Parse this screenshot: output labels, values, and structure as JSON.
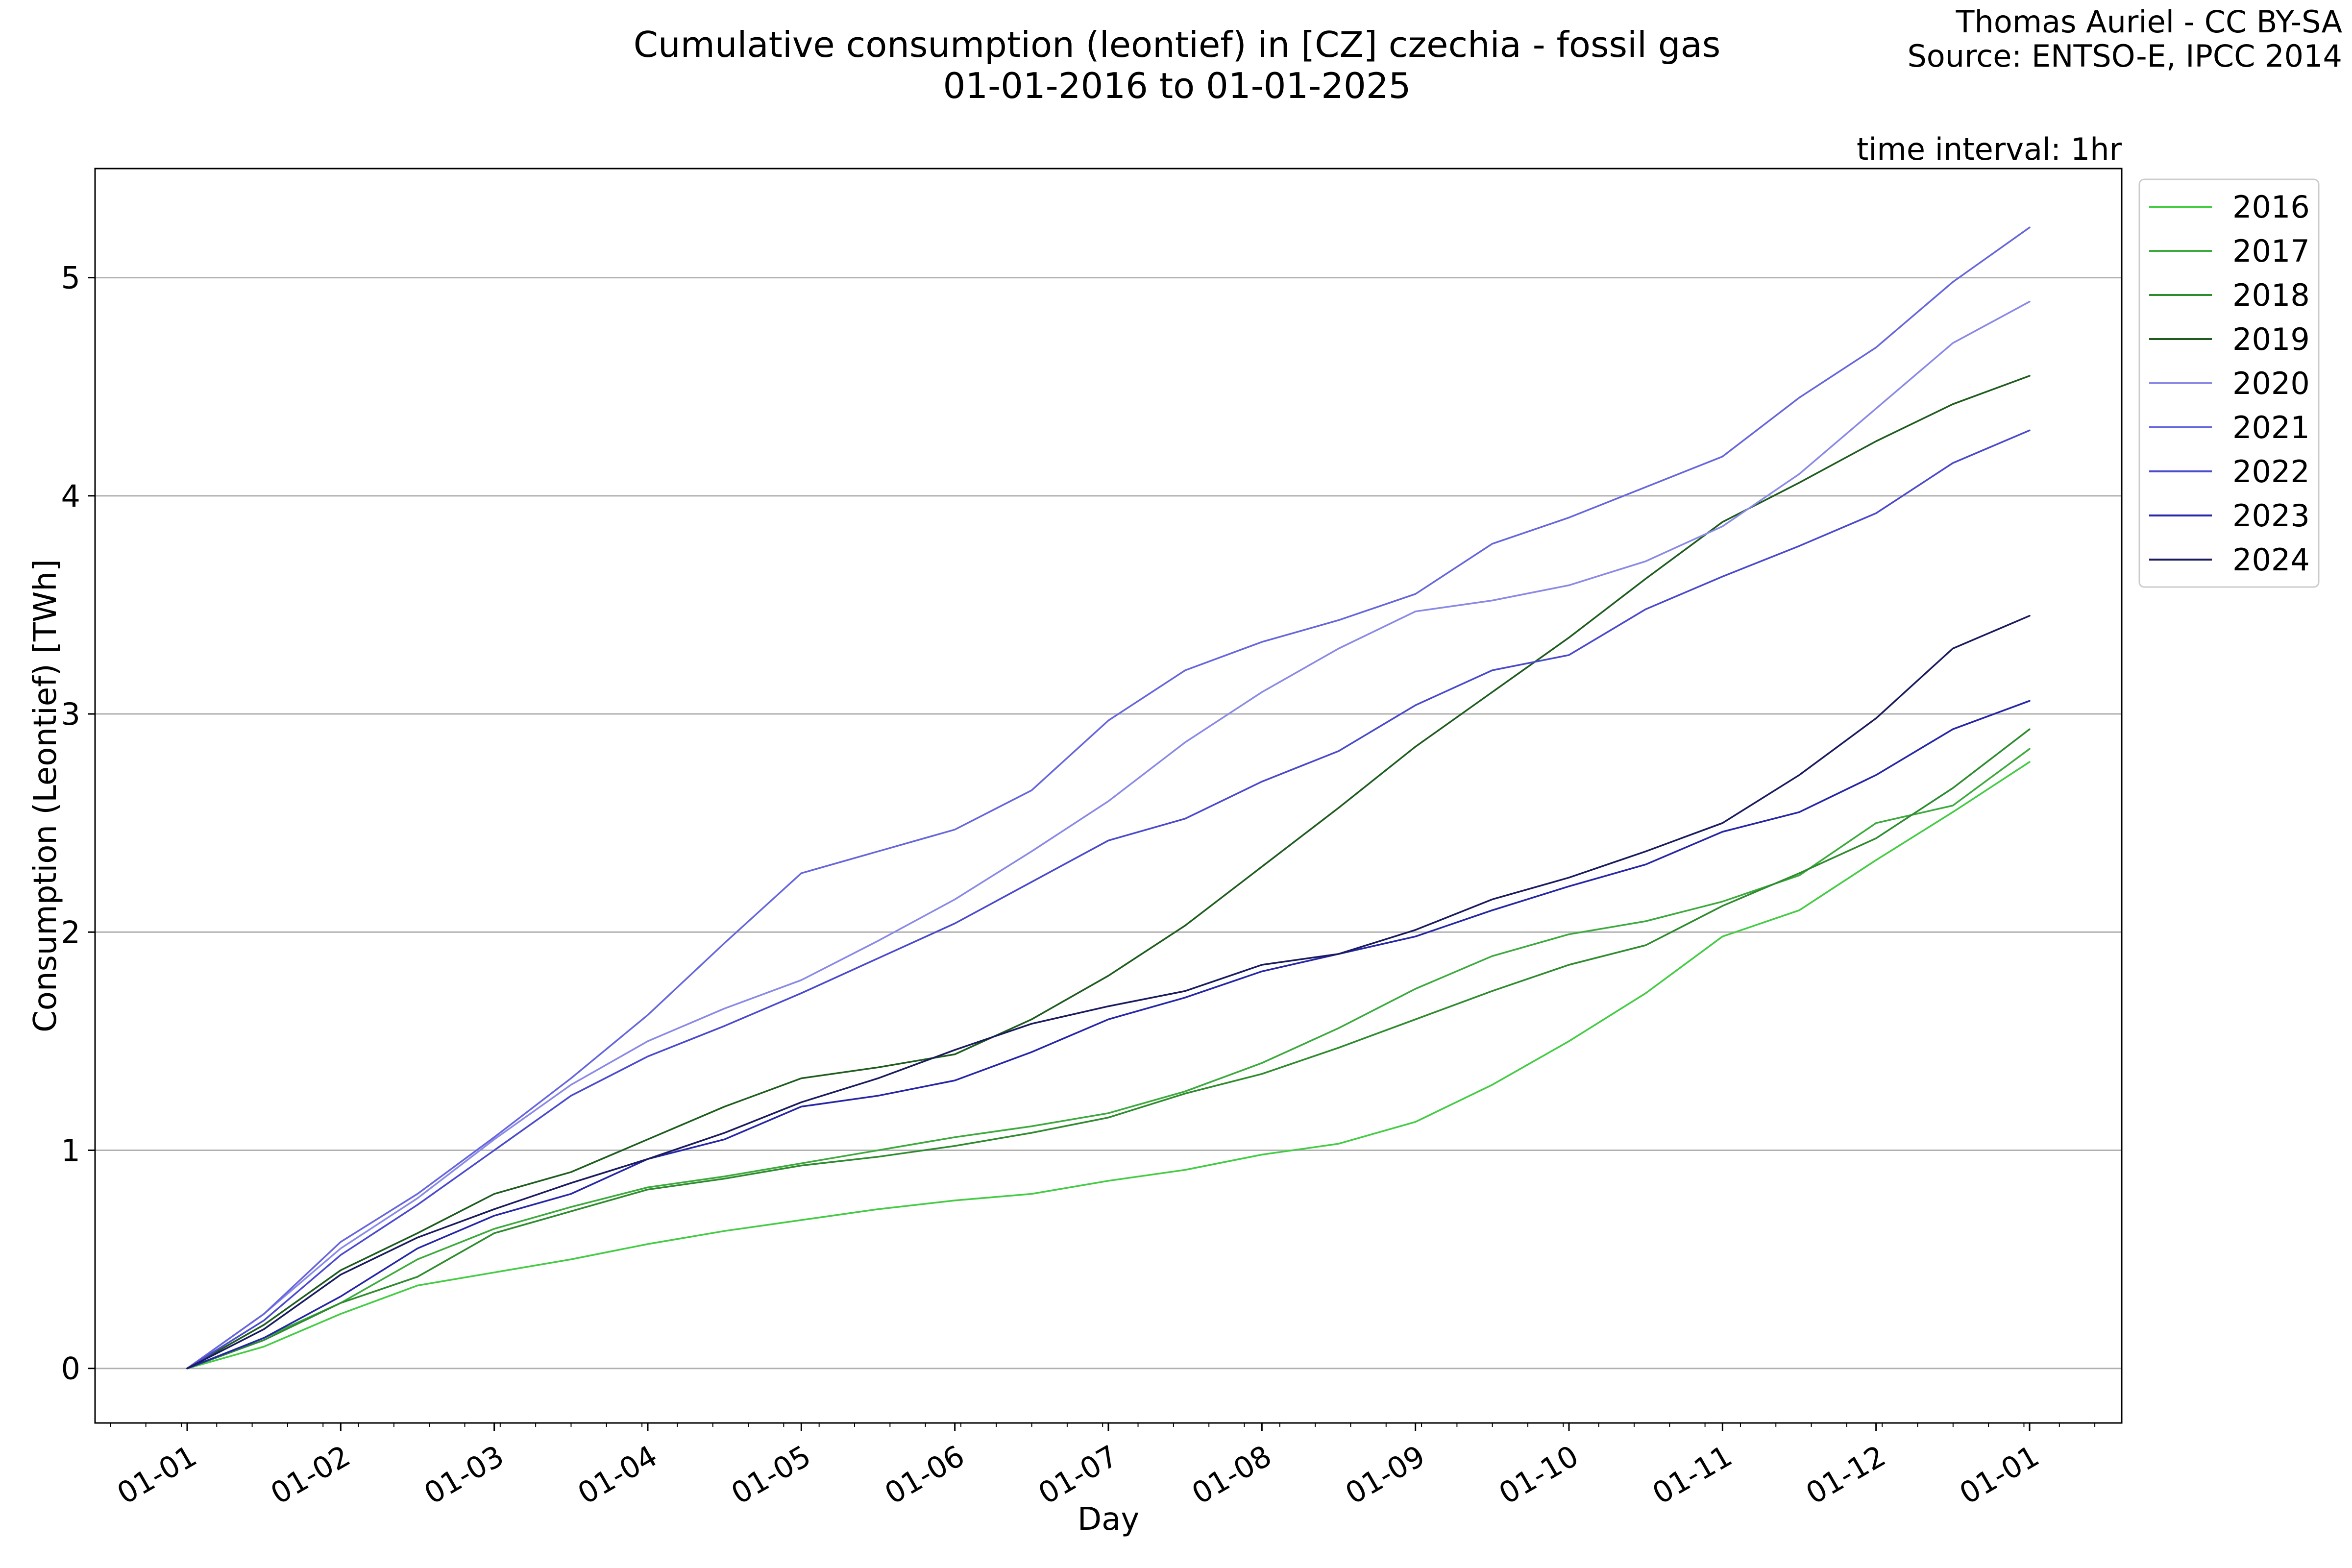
{
  "chart_data": {
    "type": "line",
    "title": "Cumulative consumption (leontief) in [CZ] czechia - fossil gas",
    "subtitle": "01-01-2016 to 01-01-2025",
    "credit": "Thomas Auriel - CC BY-SA",
    "source": "Source: ENTSO-E, IPCC 2014",
    "annotation": "time interval: 1hr",
    "xlabel": "Day",
    "ylabel": "Consumption (Leontief) [TWh]",
    "x_tick_labels": [
      "01-01",
      "01-02",
      "01-03",
      "01-04",
      "01-05",
      "01-06",
      "01-07",
      "01-08",
      "01-09",
      "01-10",
      "01-11",
      "01-12",
      "01-01"
    ],
    "y_ticks": [
      0,
      1,
      2,
      3,
      4,
      5
    ],
    "ylim": [
      -0.25,
      5.5
    ],
    "xlim_months": [
      -0.6,
      12.6
    ],
    "grid": "horizontal",
    "legend_position": "outside-top-right",
    "series": [
      {
        "name": "2016",
        "color": "#44cc44",
        "points": [
          [
            0,
            0
          ],
          [
            0.5,
            0.1
          ],
          [
            1,
            0.25
          ],
          [
            1.5,
            0.38
          ],
          [
            2,
            0.44
          ],
          [
            2.5,
            0.5
          ],
          [
            3,
            0.57
          ],
          [
            3.5,
            0.63
          ],
          [
            4,
            0.68
          ],
          [
            4.5,
            0.73
          ],
          [
            5,
            0.77
          ],
          [
            5.5,
            0.8
          ],
          [
            6,
            0.86
          ],
          [
            6.5,
            0.91
          ],
          [
            7,
            0.98
          ],
          [
            7.5,
            1.03
          ],
          [
            8,
            1.13
          ],
          [
            8.5,
            1.3
          ],
          [
            9,
            1.5
          ],
          [
            9.5,
            1.72
          ],
          [
            10,
            1.98
          ],
          [
            10.5,
            2.1
          ],
          [
            11,
            2.33
          ],
          [
            11.5,
            2.55
          ],
          [
            12,
            2.78
          ]
        ]
      },
      {
        "name": "2017",
        "color": "#3daa3d",
        "points": [
          [
            0,
            0
          ],
          [
            0.5,
            0.14
          ],
          [
            1,
            0.3
          ],
          [
            1.5,
            0.5
          ],
          [
            2,
            0.64
          ],
          [
            2.5,
            0.74
          ],
          [
            3,
            0.83
          ],
          [
            3.5,
            0.88
          ],
          [
            4,
            0.94
          ],
          [
            4.5,
            1.0
          ],
          [
            5,
            1.06
          ],
          [
            5.5,
            1.11
          ],
          [
            6,
            1.17
          ],
          [
            6.5,
            1.27
          ],
          [
            7,
            1.4
          ],
          [
            7.5,
            1.56
          ],
          [
            8,
            1.74
          ],
          [
            8.5,
            1.89
          ],
          [
            9,
            1.99
          ],
          [
            9.5,
            2.05
          ],
          [
            10,
            2.14
          ],
          [
            10.5,
            2.26
          ],
          [
            11,
            2.5
          ],
          [
            11.5,
            2.58
          ],
          [
            12,
            2.84
          ]
        ]
      },
      {
        "name": "2018",
        "color": "#2e8b2e",
        "points": [
          [
            0,
            0
          ],
          [
            0.5,
            0.13
          ],
          [
            1,
            0.3
          ],
          [
            1.5,
            0.42
          ],
          [
            2,
            0.62
          ],
          [
            2.5,
            0.72
          ],
          [
            3,
            0.82
          ],
          [
            3.5,
            0.87
          ],
          [
            4,
            0.93
          ],
          [
            4.5,
            0.97
          ],
          [
            5,
            1.02
          ],
          [
            5.5,
            1.08
          ],
          [
            6,
            1.15
          ],
          [
            6.5,
            1.26
          ],
          [
            7,
            1.35
          ],
          [
            7.5,
            1.47
          ],
          [
            8,
            1.6
          ],
          [
            8.5,
            1.73
          ],
          [
            9,
            1.85
          ],
          [
            9.5,
            1.94
          ],
          [
            10,
            2.12
          ],
          [
            10.5,
            2.27
          ],
          [
            11,
            2.43
          ],
          [
            11.5,
            2.66
          ],
          [
            12,
            2.93
          ]
        ]
      },
      {
        "name": "2019",
        "color": "#1f5c1f",
        "points": [
          [
            0,
            0
          ],
          [
            0.5,
            0.2
          ],
          [
            1,
            0.45
          ],
          [
            1.5,
            0.62
          ],
          [
            2,
            0.8
          ],
          [
            2.5,
            0.9
          ],
          [
            3,
            1.05
          ],
          [
            3.5,
            1.2
          ],
          [
            4,
            1.33
          ],
          [
            4.5,
            1.38
          ],
          [
            5,
            1.44
          ],
          [
            5.5,
            1.6
          ],
          [
            6,
            1.8
          ],
          [
            6.5,
            2.03
          ],
          [
            7,
            2.3
          ],
          [
            7.5,
            2.57
          ],
          [
            8,
            2.85
          ],
          [
            8.5,
            3.1
          ],
          [
            9,
            3.35
          ],
          [
            9.5,
            3.62
          ],
          [
            10,
            3.88
          ],
          [
            10.5,
            4.06
          ],
          [
            11,
            4.25
          ],
          [
            11.5,
            4.42
          ],
          [
            12,
            4.55
          ]
        ]
      },
      {
        "name": "2020",
        "color": "#8a8ae6",
        "points": [
          [
            0,
            0
          ],
          [
            0.5,
            0.25
          ],
          [
            1,
            0.55
          ],
          [
            1.5,
            0.78
          ],
          [
            2,
            1.05
          ],
          [
            2.5,
            1.3
          ],
          [
            3,
            1.5
          ],
          [
            3.5,
            1.65
          ],
          [
            4,
            1.78
          ],
          [
            4.5,
            1.96
          ],
          [
            5,
            2.15
          ],
          [
            5.5,
            2.37
          ],
          [
            6,
            2.6
          ],
          [
            6.5,
            2.87
          ],
          [
            7,
            3.1
          ],
          [
            7.5,
            3.3
          ],
          [
            8,
            3.47
          ],
          [
            8.5,
            3.52
          ],
          [
            9,
            3.59
          ],
          [
            9.5,
            3.7
          ],
          [
            10,
            3.86
          ],
          [
            10.5,
            4.1
          ],
          [
            11,
            4.4
          ],
          [
            11.5,
            4.7
          ],
          [
            12,
            4.89
          ]
        ]
      },
      {
        "name": "2021",
        "color": "#6666dd",
        "points": [
          [
            0,
            0
          ],
          [
            0.5,
            0.25
          ],
          [
            1,
            0.58
          ],
          [
            1.5,
            0.8
          ],
          [
            2,
            1.06
          ],
          [
            2.5,
            1.33
          ],
          [
            3,
            1.62
          ],
          [
            3.5,
            1.95
          ],
          [
            4,
            2.27
          ],
          [
            4.5,
            2.37
          ],
          [
            5,
            2.47
          ],
          [
            5.5,
            2.65
          ],
          [
            6,
            2.97
          ],
          [
            6.5,
            3.2
          ],
          [
            7,
            3.33
          ],
          [
            7.5,
            3.43
          ],
          [
            8,
            3.55
          ],
          [
            8.5,
            3.78
          ],
          [
            9,
            3.9
          ],
          [
            9.5,
            4.04
          ],
          [
            10,
            4.18
          ],
          [
            10.5,
            4.45
          ],
          [
            11,
            4.68
          ],
          [
            11.5,
            4.98
          ],
          [
            12,
            5.23
          ]
        ]
      },
      {
        "name": "2022",
        "color": "#4a4acc",
        "points": [
          [
            0,
            0
          ],
          [
            0.5,
            0.22
          ],
          [
            1,
            0.52
          ],
          [
            1.5,
            0.75
          ],
          [
            2,
            1.0
          ],
          [
            2.5,
            1.25
          ],
          [
            3,
            1.43
          ],
          [
            3.5,
            1.57
          ],
          [
            4,
            1.72
          ],
          [
            4.5,
            1.88
          ],
          [
            5,
            2.04
          ],
          [
            5.5,
            2.23
          ],
          [
            6,
            2.42
          ],
          [
            6.5,
            2.52
          ],
          [
            7,
            2.69
          ],
          [
            7.5,
            2.83
          ],
          [
            8,
            3.04
          ],
          [
            8.5,
            3.2
          ],
          [
            9,
            3.27
          ],
          [
            9.5,
            3.48
          ],
          [
            10,
            3.63
          ],
          [
            10.5,
            3.77
          ],
          [
            11,
            3.92
          ],
          [
            11.5,
            4.15
          ],
          [
            12,
            4.3
          ]
        ]
      },
      {
        "name": "2023",
        "color": "#2626a8",
        "points": [
          [
            0,
            0
          ],
          [
            0.5,
            0.14
          ],
          [
            1,
            0.33
          ],
          [
            1.5,
            0.55
          ],
          [
            2,
            0.7
          ],
          [
            2.5,
            0.8
          ],
          [
            3,
            0.96
          ],
          [
            3.5,
            1.05
          ],
          [
            4,
            1.2
          ],
          [
            4.5,
            1.25
          ],
          [
            5,
            1.32
          ],
          [
            5.5,
            1.45
          ],
          [
            6,
            1.6
          ],
          [
            6.5,
            1.7
          ],
          [
            7,
            1.82
          ],
          [
            7.5,
            1.9
          ],
          [
            8,
            1.98
          ],
          [
            8.5,
            2.1
          ],
          [
            9,
            2.21
          ],
          [
            9.5,
            2.31
          ],
          [
            10,
            2.46
          ],
          [
            10.5,
            2.55
          ],
          [
            11,
            2.72
          ],
          [
            11.5,
            2.93
          ],
          [
            12,
            3.06
          ]
        ]
      },
      {
        "name": "2024",
        "color": "#1a1a5e",
        "points": [
          [
            0,
            0
          ],
          [
            0.5,
            0.18
          ],
          [
            1,
            0.43
          ],
          [
            1.5,
            0.6
          ],
          [
            2,
            0.73
          ],
          [
            2.5,
            0.85
          ],
          [
            3,
            0.96
          ],
          [
            3.5,
            1.08
          ],
          [
            4,
            1.22
          ],
          [
            4.5,
            1.33
          ],
          [
            5,
            1.46
          ],
          [
            5.5,
            1.58
          ],
          [
            6,
            1.66
          ],
          [
            6.5,
            1.73
          ],
          [
            7,
            1.85
          ],
          [
            7.5,
            1.9
          ],
          [
            8,
            2.01
          ],
          [
            8.5,
            2.15
          ],
          [
            9,
            2.25
          ],
          [
            9.5,
            2.37
          ],
          [
            10,
            2.5
          ],
          [
            10.5,
            2.72
          ],
          [
            11,
            2.98
          ],
          [
            11.5,
            3.3
          ],
          [
            12,
            3.45
          ]
        ]
      }
    ]
  }
}
